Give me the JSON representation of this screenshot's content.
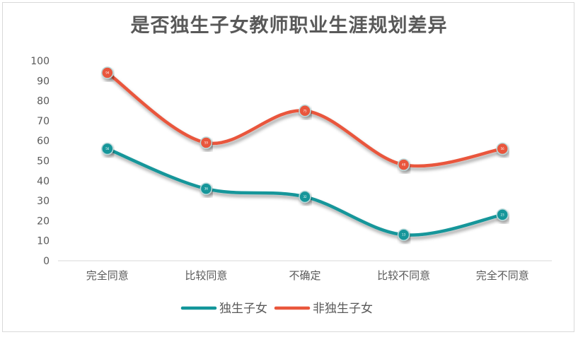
{
  "chart_data": {
    "type": "line",
    "title": "是否独生子女教师职业生涯规划差异",
    "categories": [
      "完全同意",
      "比较同意",
      "不确定",
      "比较不同意",
      "完全不同意"
    ],
    "yticks": [
      "0",
      "10",
      "20",
      "30",
      "40",
      "50",
      "60",
      "70",
      "80",
      "90",
      "100"
    ],
    "ylim": [
      0,
      100
    ],
    "smooth": true,
    "grid": false,
    "legend_position": "bottom",
    "series": [
      {
        "name": "独生子女",
        "color": "#12969a",
        "values": [
          56,
          36,
          32,
          13,
          23
        ]
      },
      {
        "name": "非独生子女",
        "color": "#e9573c",
        "values": [
          94,
          59,
          75,
          48,
          56
        ]
      }
    ]
  }
}
